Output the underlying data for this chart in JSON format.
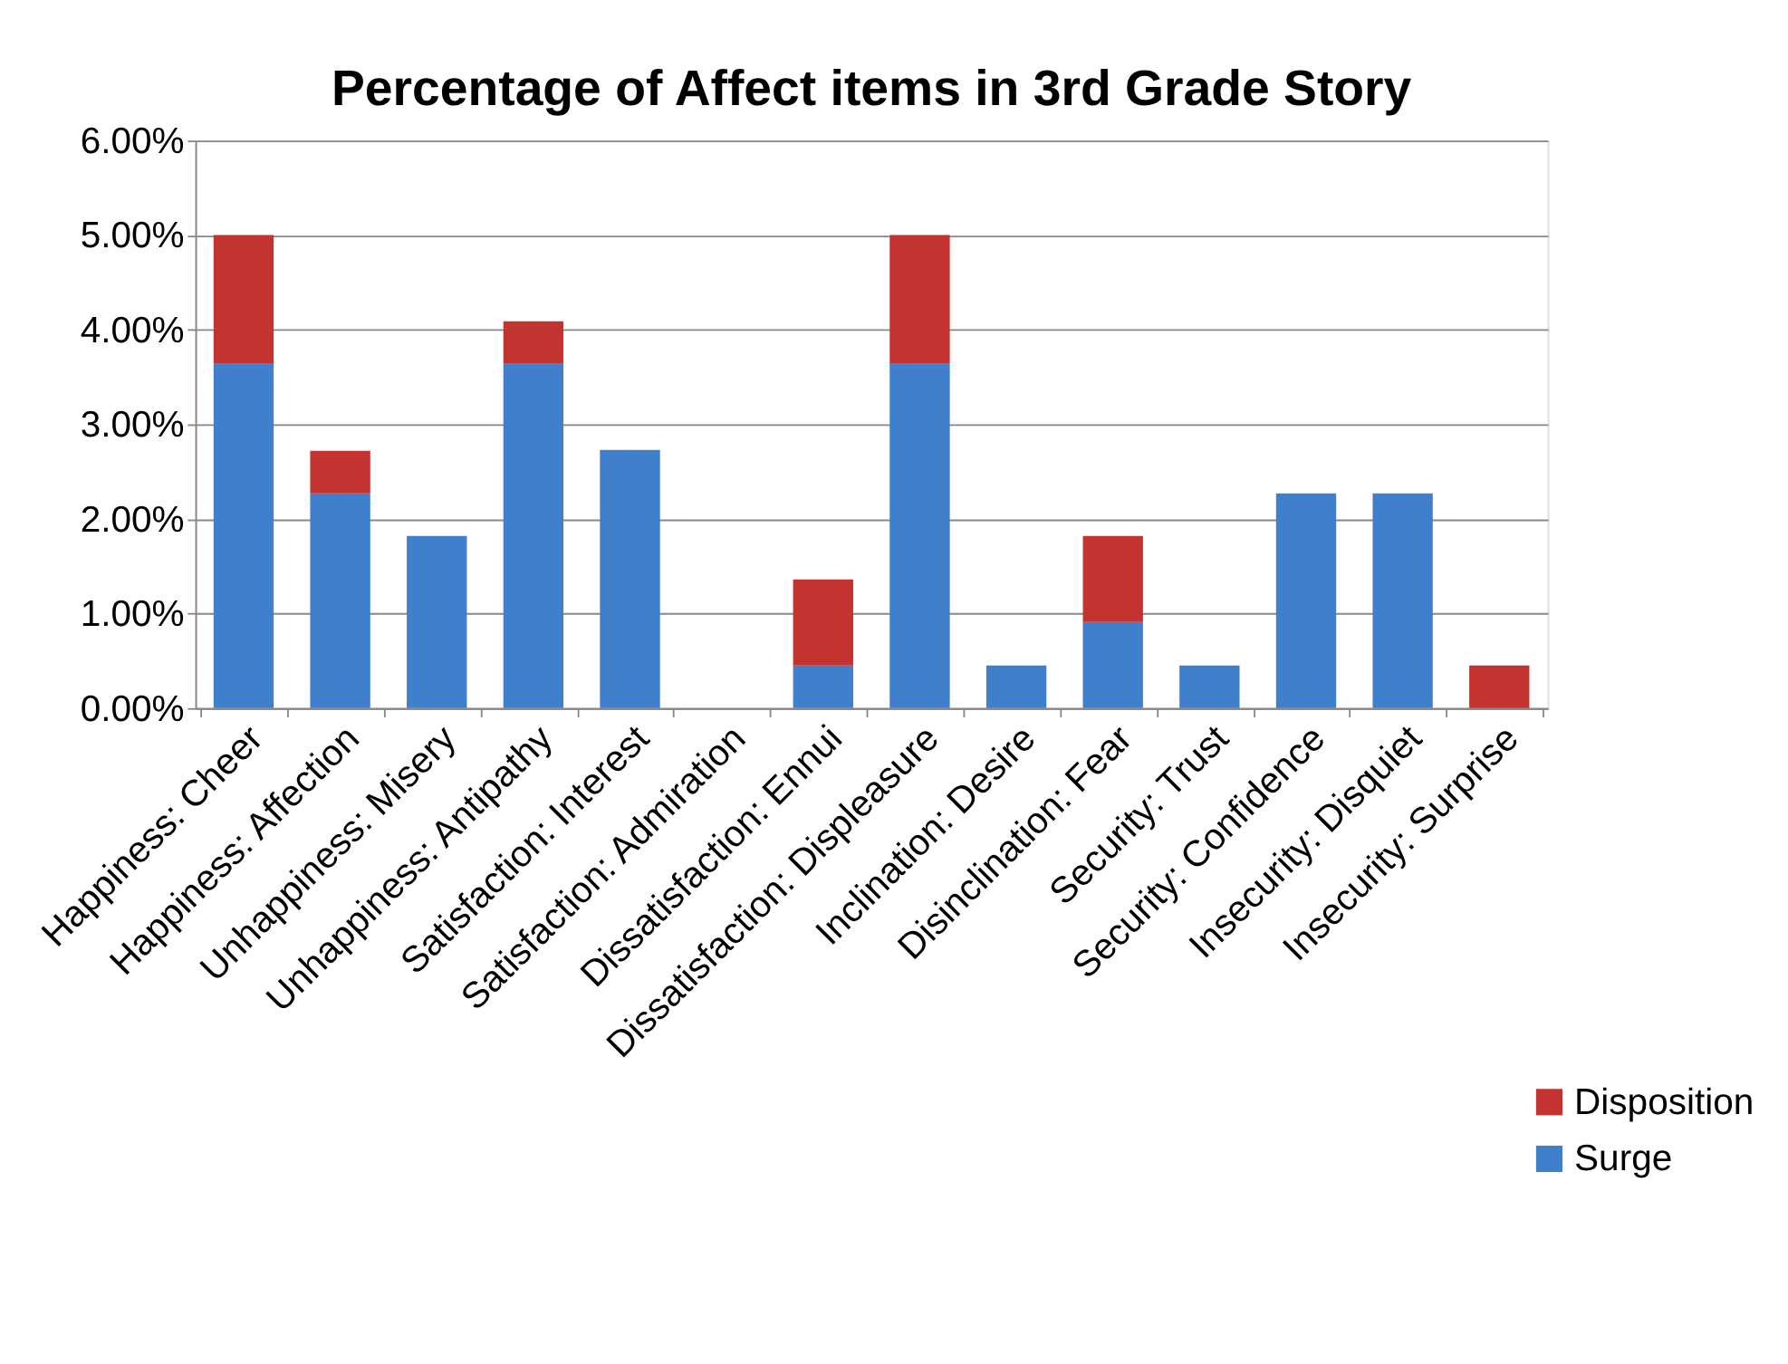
{
  "chart_data": {
    "type": "bar",
    "title": "Percentage of Affect items in 3rd Grade Story",
    "categories": [
      "Happiness: Cheer",
      "Happiness: Affection",
      "Unhappiness: Misery",
      "Unhappiness: Antipathy",
      "Satisfaction: Interest",
      "Satisfaction: Admiration",
      "Dissatisfaction: Ennui",
      "Dissatisfaction: Displeasure",
      "Inclination: Desire",
      "Disinclination: Fear",
      "Security: Trust",
      "Security: Confidence",
      "Insecurity: Disquiet",
      "Insecurity: Surprise"
    ],
    "series": [
      {
        "name": "Surge",
        "color": "#3f7fcc",
        "values": [
          3.64,
          2.27,
          1.82,
          3.64,
          2.73,
          null,
          0.45,
          3.64,
          0.45,
          0.91,
          0.45,
          2.27,
          2.27,
          null
        ]
      },
      {
        "name": "Disposition",
        "color": "#c33330",
        "values": [
          1.36,
          0.45,
          null,
          0.45,
          null,
          null,
          0.91,
          1.36,
          null,
          0.91,
          null,
          null,
          null,
          0.45
        ]
      }
    ],
    "stacked": true,
    "ylim": [
      0,
      6
    ],
    "yticks": [
      {
        "value": 0,
        "label": "0.00%"
      },
      {
        "value": 1,
        "label": "1.00%"
      },
      {
        "value": 2,
        "label": "2.00%"
      },
      {
        "value": 3,
        "label": "3.00%"
      },
      {
        "value": 4,
        "label": "4.00%"
      },
      {
        "value": 5,
        "label": "5.00%"
      },
      {
        "value": 6,
        "label": "6.00%"
      }
    ],
    "grid": "y",
    "legend": "bottom right"
  }
}
